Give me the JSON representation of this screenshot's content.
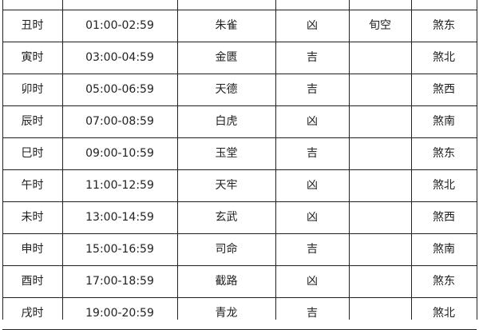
{
  "table": {
    "rows": [
      [
        "丑时",
        "01:00-02:59",
        "朱雀",
        "凶",
        "旬空",
        "煞东"
      ],
      [
        "寅时",
        "03:00-04:59",
        "金匮",
        "吉",
        null,
        "煞北"
      ],
      [
        "卯时",
        "05:00-06:59",
        "天德",
        "吉",
        null,
        "煞西"
      ],
      [
        "辰时",
        "07:00-08:59",
        "白虎",
        "凶",
        null,
        "煞南"
      ],
      [
        "巳时",
        "09:00-10:59",
        "玉堂",
        "吉",
        null,
        "煞东"
      ],
      [
        "午时",
        "11:00-12:59",
        "天牢",
        "凶",
        null,
        "煞北"
      ],
      [
        "未时",
        "13:00-14:59",
        "玄武",
        "凶",
        null,
        "煞西"
      ],
      [
        "申时",
        "15:00-16:59",
        "司命",
        "吉",
        null,
        "煞南"
      ],
      [
        "酉时",
        "17:00-18:59",
        "截路",
        "凶",
        null,
        "煞东"
      ],
      [
        "戌时",
        "19:00-20:59",
        "青龙",
        "吉",
        null,
        "煞北"
      ]
    ]
  }
}
